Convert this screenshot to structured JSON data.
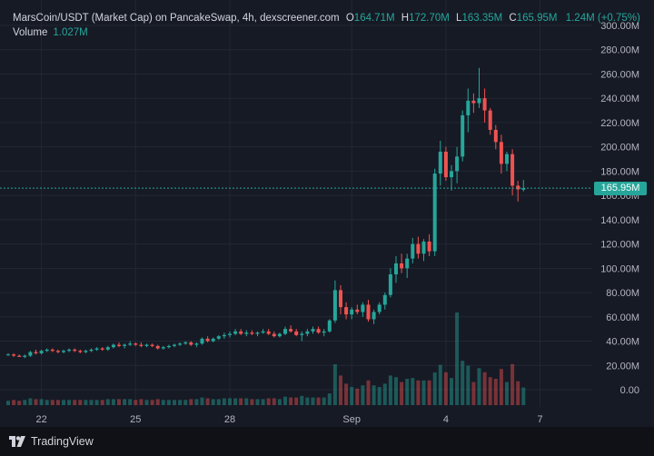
{
  "legend": {
    "symbol": "MarsCoin/USDT (Market Cap) on PancakeSwap, 4h, dexscreener.com",
    "o_label": "O",
    "o_value": "164.71M",
    "h_label": "H",
    "h_value": "172.70M",
    "l_label": "L",
    "l_value": "163.35M",
    "c_label": "C",
    "c_value": "165.95M",
    "change": "1.24M (+0.75%)",
    "volume_label": "Volume",
    "volume_value": "1.027M"
  },
  "price_tag": "165.95M",
  "footer": {
    "brand": "TradingView",
    "logo_icon": "tradingview-logo-icon"
  },
  "colors": {
    "up": "#26a69a",
    "down": "#ef5350",
    "background": "#161a25",
    "grid": "#232734",
    "text": "#d1d4dc"
  },
  "chart_data": {
    "type": "candlestick",
    "y_axis_ticks": [
      "300.00M",
      "280.00M",
      "260.00M",
      "240.00M",
      "220.00M",
      "200.00M",
      "180.00M",
      "160.00M",
      "140.00M",
      "120.00M",
      "100.00M",
      "80.00M",
      "60.00M",
      "40.00M",
      "20.00M",
      "0.00"
    ],
    "x_axis_ticks": [
      "22",
      "25",
      "28",
      "Sep",
      "4",
      "7"
    ],
    "ylim_millions": [
      0,
      300
    ],
    "unit": "M",
    "last_price": 165.95,
    "grid": true,
    "candles_ohlc_millions": [
      [
        29,
        30,
        28,
        29
      ],
      [
        29,
        30,
        27,
        28
      ],
      [
        28,
        29,
        27,
        27
      ],
      [
        27,
        29,
        26,
        28
      ],
      [
        28,
        32,
        27,
        31
      ],
      [
        31,
        33,
        29,
        30
      ],
      [
        30,
        33,
        29,
        32
      ],
      [
        32,
        34,
        31,
        33
      ],
      [
        33,
        34,
        31,
        32
      ],
      [
        32,
        33,
        30,
        31
      ],
      [
        31,
        33,
        30,
        32
      ],
      [
        32,
        34,
        31,
        33
      ],
      [
        33,
        34,
        31,
        32
      ],
      [
        32,
        33,
        30,
        31
      ],
      [
        31,
        33,
        30,
        32
      ],
      [
        32,
        34,
        31,
        33
      ],
      [
        33,
        35,
        32,
        34
      ],
      [
        34,
        35,
        32,
        33
      ],
      [
        33,
        36,
        32,
        35
      ],
      [
        35,
        38,
        34,
        37
      ],
      [
        37,
        39,
        35,
        36
      ],
      [
        36,
        38,
        34,
        37
      ],
      [
        37,
        40,
        36,
        38
      ],
      [
        38,
        39,
        36,
        37
      ],
      [
        37,
        39,
        35,
        36
      ],
      [
        36,
        38,
        35,
        37
      ],
      [
        37,
        38,
        35,
        36
      ],
      [
        36,
        37,
        33,
        34
      ],
      [
        34,
        36,
        33,
        35
      ],
      [
        35,
        37,
        34,
        36
      ],
      [
        36,
        38,
        35,
        37
      ],
      [
        37,
        39,
        36,
        38
      ],
      [
        38,
        40,
        37,
        39
      ],
      [
        39,
        40,
        36,
        37
      ],
      [
        37,
        39,
        35,
        38
      ],
      [
        38,
        43,
        37,
        42
      ],
      [
        42,
        44,
        39,
        40
      ],
      [
        40,
        43,
        39,
        42
      ],
      [
        42,
        45,
        41,
        44
      ],
      [
        44,
        47,
        42,
        45
      ],
      [
        45,
        48,
        43,
        46
      ],
      [
        46,
        50,
        45,
        48
      ],
      [
        48,
        50,
        45,
        46
      ],
      [
        46,
        49,
        44,
        47
      ],
      [
        47,
        49,
        45,
        46
      ],
      [
        46,
        48,
        44,
        47
      ],
      [
        47,
        50,
        46,
        48
      ],
      [
        48,
        50,
        45,
        46
      ],
      [
        46,
        48,
        43,
        44
      ],
      [
        44,
        47,
        43,
        46
      ],
      [
        46,
        52,
        45,
        50
      ],
      [
        50,
        53,
        47,
        48
      ],
      [
        48,
        50,
        44,
        45
      ],
      [
        45,
        48,
        40,
        46
      ],
      [
        46,
        50,
        44,
        48
      ],
      [
        48,
        52,
        46,
        50
      ],
      [
        50,
        52,
        46,
        47
      ],
      [
        47,
        50,
        44,
        48
      ],
      [
        48,
        58,
        47,
        57
      ],
      [
        57,
        90,
        55,
        82
      ],
      [
        82,
        86,
        62,
        68
      ],
      [
        68,
        72,
        58,
        62
      ],
      [
        62,
        68,
        58,
        66
      ],
      [
        66,
        70,
        62,
        64
      ],
      [
        64,
        72,
        60,
        70
      ],
      [
        70,
        74,
        56,
        58
      ],
      [
        58,
        66,
        54,
        64
      ],
      [
        64,
        72,
        62,
        70
      ],
      [
        70,
        80,
        66,
        78
      ],
      [
        78,
        100,
        76,
        95
      ],
      [
        95,
        110,
        88,
        104
      ],
      [
        104,
        112,
        96,
        100
      ],
      [
        100,
        112,
        92,
        108
      ],
      [
        108,
        125,
        104,
        120
      ],
      [
        120,
        126,
        108,
        112
      ],
      [
        112,
        124,
        106,
        122
      ],
      [
        122,
        128,
        110,
        114
      ],
      [
        114,
        182,
        110,
        178
      ],
      [
        178,
        205,
        168,
        196
      ],
      [
        196,
        200,
        172,
        175
      ],
      [
        175,
        185,
        164,
        180
      ],
      [
        180,
        200,
        170,
        192
      ],
      [
        192,
        230,
        188,
        226
      ],
      [
        226,
        248,
        212,
        238
      ],
      [
        238,
        244,
        228,
        236
      ],
      [
        236,
        265,
        232,
        240
      ],
      [
        240,
        248,
        220,
        230
      ],
      [
        230,
        232,
        210,
        214
      ],
      [
        214,
        218,
        198,
        204
      ],
      [
        204,
        210,
        178,
        186
      ],
      [
        186,
        196,
        180,
        194
      ],
      [
        194,
        198,
        160,
        168
      ],
      [
        168,
        172,
        155,
        165
      ],
      [
        164.71,
        172.7,
        163.35,
        165.95
      ]
    ]
  }
}
